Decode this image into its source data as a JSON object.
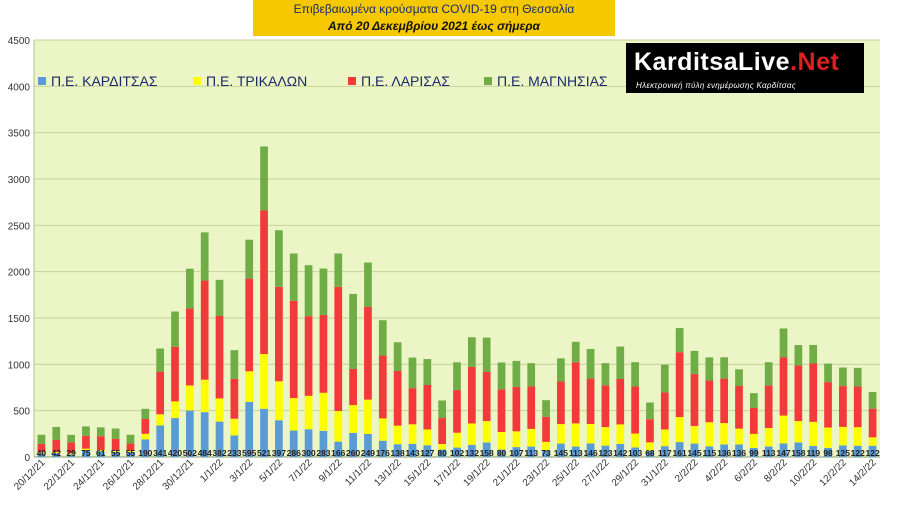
{
  "title": {
    "line1": "Επιβεβαιωμένα κρούσματα COVID-19 στη Θεσσαλία",
    "line2": "Από 20 Δεκεμβρίου 2021 έως σήμερα"
  },
  "logo": {
    "text_main": "KarditsaLive",
    "text_dot": ".Net",
    "tagline": "Ηλεκτρονική πύλη ενημέρωσης Καρδίτσας"
  },
  "chart_data": {
    "type": "bar",
    "stacked": true,
    "ylim": [
      0,
      4500
    ],
    "yticks": [
      0,
      500,
      1000,
      1500,
      2000,
      2500,
      3000,
      3500,
      4000,
      4500
    ],
    "grid": true,
    "legend_position": "top-left",
    "categories": [
      "20/12/21",
      "21/12/21",
      "22/12/21",
      "23/12/21",
      "24/12/21",
      "25/12/21",
      "26/12/21",
      "27/12/21",
      "28/12/21",
      "29/12/21",
      "30/12/21",
      "31/12/21",
      "1/1/22",
      "2/1/22",
      "3/1/22",
      "4/1/22",
      "5/1/22",
      "6/1/22",
      "7/1/22",
      "8/1/22",
      "9/1/22",
      "10/1/22",
      "11/1/22",
      "12/1/22",
      "13/1/22",
      "14/1/22",
      "15/1/22",
      "16/1/22",
      "17/1/22",
      "18/1/22",
      "19/1/22",
      "20/1/22",
      "21/1/22",
      "22/1/22",
      "23/1/22",
      "24/1/22",
      "25/1/22",
      "26/1/22",
      "27/1/22",
      "28/1/22",
      "29/1/22",
      "30/1/22",
      "31/1/22",
      "1/2/22",
      "2/2/22",
      "3/2/22",
      "4/2/22",
      "5/2/22",
      "6/2/22",
      "7/2/22",
      "8/2/22",
      "9/2/22",
      "10/2/22",
      "11/2/22",
      "12/2/22",
      "13/2/22",
      "14/2/22"
    ],
    "tick_labels": [
      "20/12/21",
      "22/12/21",
      "24/12/21",
      "26/12/21",
      "28/12/21",
      "30/12/21",
      "1/1/22",
      "3/1/22",
      "5/1/22",
      "7/1/22",
      "9/1/22",
      "11/1/22",
      "13/1/22",
      "15/1/22",
      "17/1/22",
      "19/1/22",
      "21/1/22",
      "23/1/22",
      "25/1/22",
      "27/1/22",
      "29/1/22",
      "31/1/22",
      "2/2/22",
      "4/2/22",
      "6/2/22",
      "8/2/22",
      "10/2/22",
      "12/2/22",
      "14/2/22"
    ],
    "label_series": 0,
    "series": [
      {
        "name": "Π.Ε. ΚΑΡΔΙΤΣΑΣ",
        "color": "#5b9bd5",
        "values": [
          40,
          42,
          29,
          75,
          61,
          55,
          55,
          190,
          341,
          420,
          502,
          484,
          382,
          233,
          595,
          521,
          397,
          286,
          300,
          283,
          166,
          260,
          249,
          176,
          138,
          143,
          127,
          80,
          102,
          132,
          158,
          80,
          107,
          113,
          73,
          145,
          113,
          146,
          123,
          142,
          103,
          68,
          117,
          161,
          145,
          115,
          136,
          136,
          99,
          113,
          147,
          158,
          119,
          98,
          125,
          122,
          122
        ]
      },
      {
        "name": "Π.Ε. ΤΡΙΚΑΛΩΝ",
        "color": "#ffff00",
        "values": [
          10,
          12,
          10,
          15,
          14,
          12,
          10,
          60,
          120,
          180,
          270,
          350,
          250,
          180,
          330,
          590,
          420,
          350,
          360,
          410,
          330,
          300,
          370,
          240,
          200,
          210,
          170,
          60,
          160,
          230,
          230,
          190,
          170,
          190,
          90,
          210,
          250,
          210,
          200,
          210,
          150,
          90,
          180,
          270,
          190,
          260,
          230,
          170,
          150,
          200,
          300,
          230,
          260,
          220,
          200,
          200,
          90
        ]
      },
      {
        "name": "Π.Ε. ΛΑΡΙΣΑΣ",
        "color": "#f23a3a",
        "values": [
          90,
          130,
          120,
          140,
          150,
          130,
          80,
          160,
          460,
          590,
          830,
          1070,
          890,
          430,
          1000,
          1550,
          1020,
          1050,
          860,
          840,
          1340,
          390,
          1000,
          680,
          590,
          390,
          480,
          280,
          460,
          610,
          530,
          460,
          480,
          460,
          270,
          460,
          660,
          490,
          450,
          490,
          510,
          250,
          400,
          700,
          560,
          450,
          480,
          460,
          280,
          460,
          630,
          600,
          630,
          490,
          440,
          440,
          310
        ]
      },
      {
        "name": "Π.Ε. ΜΑΓΝΗΣΙΑΣ",
        "color": "#70ad47",
        "values": [
          100,
          140,
          80,
          100,
          95,
          110,
          95,
          110,
          250,
          380,
          430,
          520,
          390,
          310,
          420,
          690,
          610,
          510,
          550,
          500,
          360,
          810,
          480,
          380,
          310,
          330,
          280,
          190,
          300,
          320,
          370,
          290,
          280,
          250,
          180,
          250,
          220,
          320,
          240,
          350,
          260,
          180,
          300,
          260,
          250,
          250,
          230,
          180,
          160,
          250,
          310,
          220,
          200,
          200,
          200,
          200,
          180
        ]
      }
    ]
  }
}
